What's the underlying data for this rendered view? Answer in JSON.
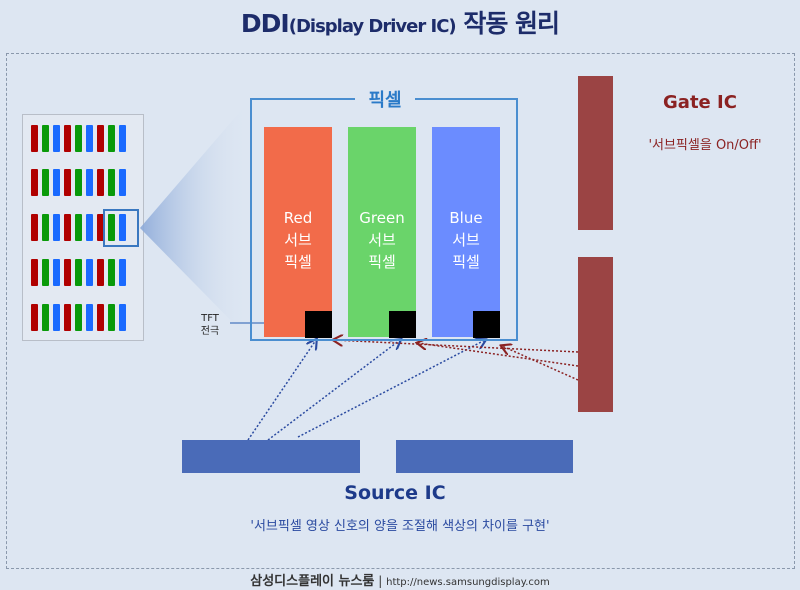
{
  "title": {
    "main": "DDI",
    "paren": "(Display Driver IC)",
    "rest": " 작동 원리"
  },
  "pixel_label": "픽셀",
  "subpixels": [
    {
      "name": "Red",
      "label2": "서브",
      "label3": "픽셀",
      "color": "#f26b4a"
    },
    {
      "name": "Green",
      "label2": "서브",
      "label3": "픽셀",
      "color": "#6ad46a"
    },
    {
      "name": "Blue",
      "label2": "서브",
      "label3": "픽셀",
      "color": "#6b8cff"
    }
  ],
  "tft_label": {
    "line1": "TFT",
    "line2": "전극"
  },
  "gate": {
    "title": "Gate IC",
    "desc": "'서브픽셀을 On/Off'",
    "color": "#9b4444"
  },
  "source": {
    "title": "Source IC",
    "desc": "'서브픽셀 영상 신호의 양을 조절해 색상의 차이를 구현'",
    "color": "#4a6bb8"
  },
  "panel_colors": [
    "#b00000",
    "#0a9a0a",
    "#1a6aff"
  ],
  "footer": {
    "brand": "삼성디스플레이 뉴스룸",
    "sep": "|",
    "url": "http://news.samsungdisplay.com"
  }
}
